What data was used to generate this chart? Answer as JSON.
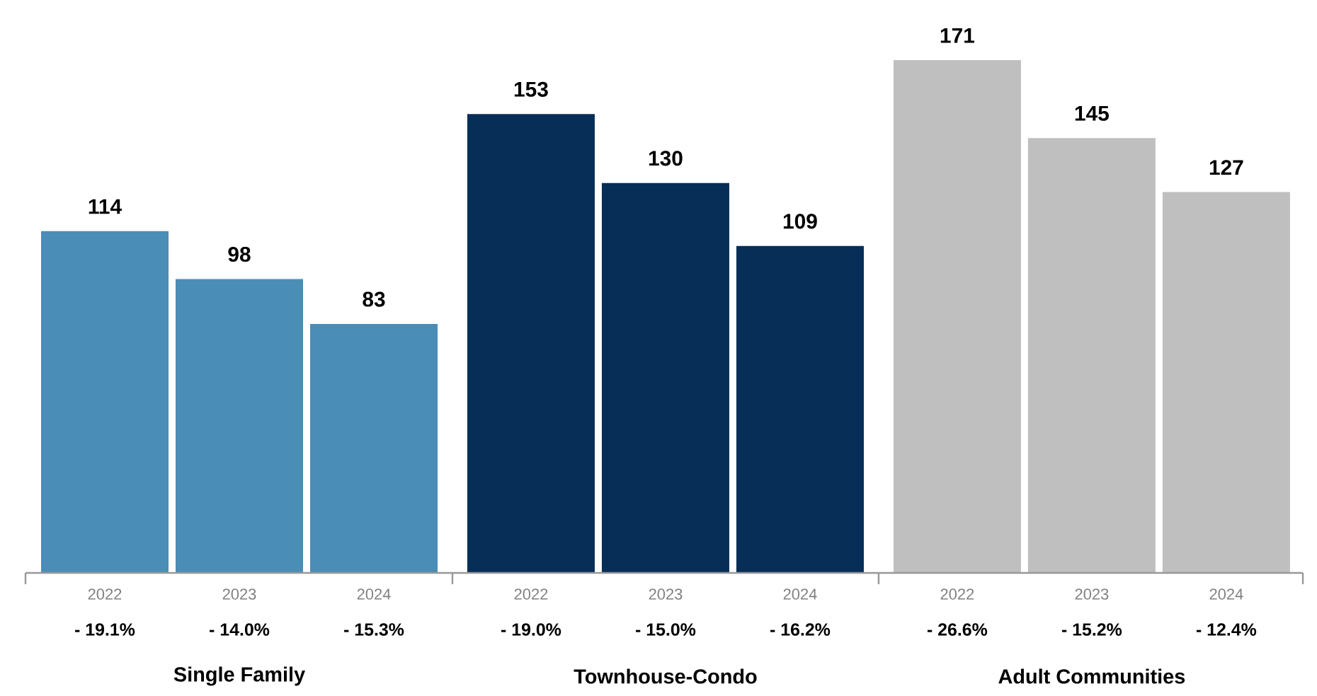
{
  "chart_data": {
    "type": "bar",
    "categories": [
      "2022",
      "2023",
      "2024",
      "2022",
      "2023",
      "2024",
      "2022",
      "2023",
      "2024"
    ],
    "values": [
      114,
      98,
      83,
      153,
      130,
      109,
      171,
      145,
      127
    ],
    "colors": [
      "#4a8db7",
      "#4a8db7",
      "#4a8db7",
      "#062e57",
      "#062e57",
      "#062e57",
      "#bfbfbf",
      "#bfbfbf",
      "#bfbfbf"
    ],
    "data_labels": true,
    "annotations": [
      "- 19.1%",
      "- 14.0%",
      "- 15.3%",
      "- 19.0%",
      "- 15.0%",
      "- 16.2%",
      "- 26.6%",
      "- 15.2%",
      "- 12.4%",
      "Single Family",
      "Townhouse-Condo",
      "Adult Communities"
    ]
  }
}
